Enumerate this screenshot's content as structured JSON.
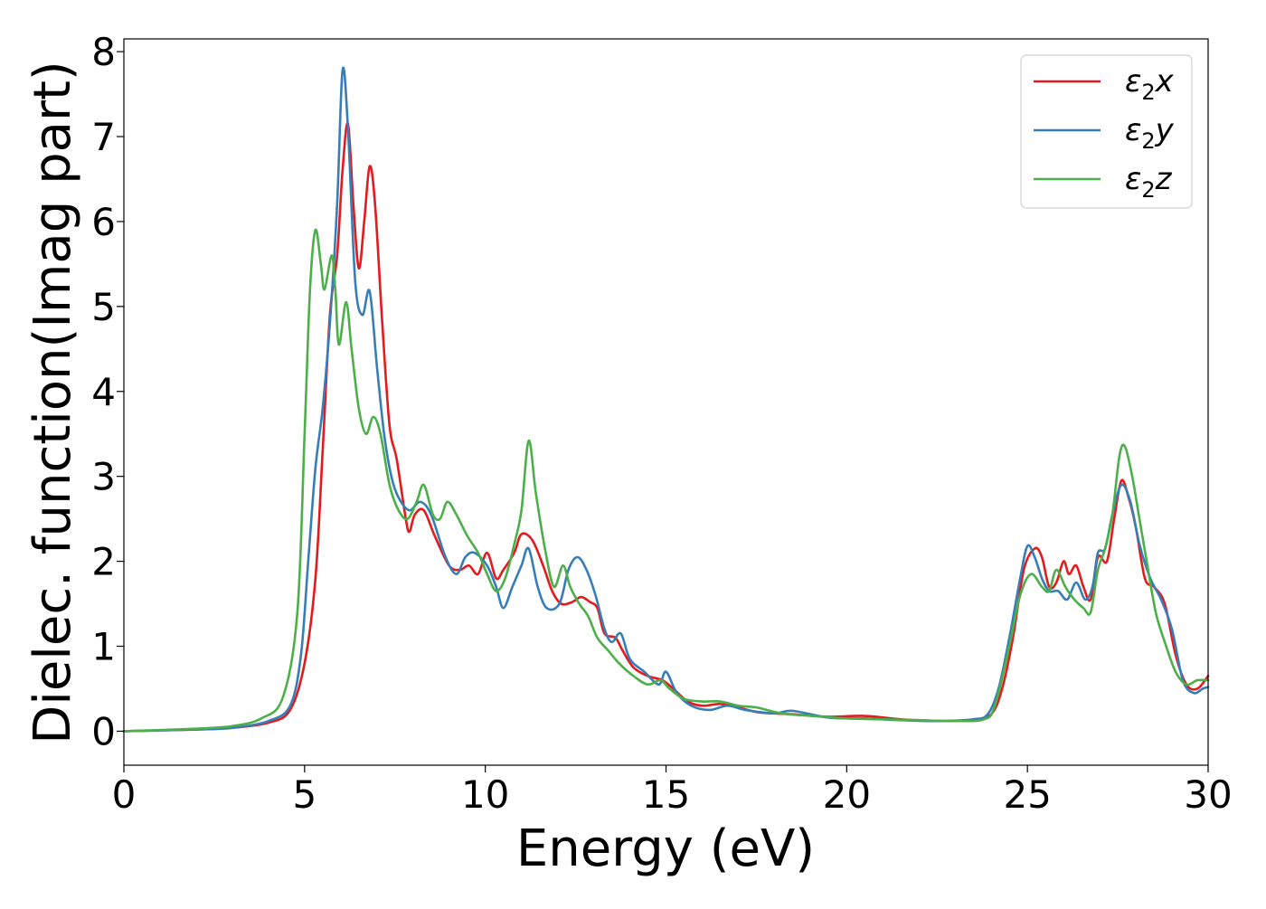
{
  "chart_data": {
    "type": "line",
    "title": "",
    "xlabel": "Energy (eV)",
    "ylabel": "Dielec. function(Imag part)",
    "xlim": [
      0,
      30
    ],
    "ylim": [
      -0.4,
      8.15
    ],
    "xticks": [
      0,
      5,
      10,
      15,
      20,
      25,
      30
    ],
    "yticks": [
      0,
      1,
      2,
      3,
      4,
      5,
      6,
      7,
      8
    ],
    "xtick_labels": [
      "0",
      "5",
      "10",
      "15",
      "20",
      "25",
      "30"
    ],
    "ytick_labels": [
      "0",
      "1",
      "2",
      "3",
      "4",
      "5",
      "6",
      "7",
      "8"
    ],
    "grid": false,
    "legend_position": "top-right",
    "series": [
      {
        "name": "ε₂x",
        "legend_base": "ε",
        "legend_sub": "2",
        "legend_var": "x",
        "color": "#e41a1c",
        "points": [
          [
            0,
            0
          ],
          [
            2,
            0.02
          ],
          [
            3,
            0.04
          ],
          [
            4,
            0.1
          ],
          [
            4.6,
            0.25
          ],
          [
            5,
            0.8
          ],
          [
            5.3,
            1.8
          ],
          [
            5.5,
            3.3
          ],
          [
            5.7,
            4.9
          ],
          [
            5.9,
            5.6
          ],
          [
            6.05,
            6.6
          ],
          [
            6.2,
            7.15
          ],
          [
            6.35,
            6.2
          ],
          [
            6.5,
            5.45
          ],
          [
            6.65,
            6
          ],
          [
            6.8,
            6.65
          ],
          [
            6.95,
            6.2
          ],
          [
            7.15,
            4.8
          ],
          [
            7.35,
            3.6
          ],
          [
            7.55,
            3.2
          ],
          [
            7.8,
            2.5
          ],
          [
            7.9,
            2.35
          ],
          [
            8.05,
            2.55
          ],
          [
            8.3,
            2.6
          ],
          [
            8.6,
            2.3
          ],
          [
            9,
            1.95
          ],
          [
            9.3,
            1.9
          ],
          [
            9.55,
            1.95
          ],
          [
            9.8,
            1.85
          ],
          [
            10.05,
            2.1
          ],
          [
            10.3,
            1.8
          ],
          [
            10.5,
            1.9
          ],
          [
            10.8,
            2.1
          ],
          [
            11,
            2.32
          ],
          [
            11.3,
            2.25
          ],
          [
            11.6,
            1.95
          ],
          [
            11.85,
            1.65
          ],
          [
            12.1,
            1.5
          ],
          [
            12.4,
            1.52
          ],
          [
            12.65,
            1.58
          ],
          [
            12.9,
            1.52
          ],
          [
            13.1,
            1.45
          ],
          [
            13.3,
            1.15
          ],
          [
            13.6,
            1.1
          ],
          [
            13.8,
            0.95
          ],
          [
            14.1,
            0.75
          ],
          [
            14.5,
            0.65
          ],
          [
            14.9,
            0.6
          ],
          [
            15.2,
            0.5
          ],
          [
            15.6,
            0.35
          ],
          [
            16,
            0.3
          ],
          [
            16.5,
            0.32
          ],
          [
            17,
            0.28
          ],
          [
            17.6,
            0.22
          ],
          [
            18.5,
            0.2
          ],
          [
            19.5,
            0.17
          ],
          [
            20.5,
            0.18
          ],
          [
            21.5,
            0.14
          ],
          [
            22.5,
            0.12
          ],
          [
            23.5,
            0.13
          ],
          [
            24,
            0.2
          ],
          [
            24.3,
            0.5
          ],
          [
            24.6,
            1.1
          ],
          [
            24.9,
            1.9
          ],
          [
            25.2,
            2.15
          ],
          [
            25.4,
            2.05
          ],
          [
            25.6,
            1.7
          ],
          [
            25.8,
            1.75
          ],
          [
            26,
            2
          ],
          [
            26.15,
            1.85
          ],
          [
            26.35,
            1.95
          ],
          [
            26.55,
            1.7
          ],
          [
            26.75,
            1.55
          ],
          [
            26.95,
            2.05
          ],
          [
            27.2,
            2
          ],
          [
            27.4,
            2.5
          ],
          [
            27.6,
            2.95
          ],
          [
            27.8,
            2.75
          ],
          [
            28,
            2.4
          ],
          [
            28.25,
            1.8
          ],
          [
            28.5,
            1.7
          ],
          [
            28.8,
            1.5
          ],
          [
            29.1,
            0.9
          ],
          [
            29.4,
            0.55
          ],
          [
            29.7,
            0.5
          ],
          [
            30,
            0.65
          ]
        ]
      },
      {
        "name": "ε₂y",
        "legend_base": "ε",
        "legend_sub": "2",
        "legend_var": "y",
        "color": "#377eb8",
        "points": [
          [
            0,
            0
          ],
          [
            2,
            0.02
          ],
          [
            3,
            0.04
          ],
          [
            4,
            0.12
          ],
          [
            4.6,
            0.3
          ],
          [
            4.9,
            0.9
          ],
          [
            5.1,
            2
          ],
          [
            5.3,
            3.1
          ],
          [
            5.5,
            3.8
          ],
          [
            5.7,
            4.8
          ],
          [
            5.9,
            6.2
          ],
          [
            6.05,
            7.78
          ],
          [
            6.2,
            7.1
          ],
          [
            6.4,
            5.3
          ],
          [
            6.6,
            4.9
          ],
          [
            6.8,
            5.18
          ],
          [
            7,
            4.3
          ],
          [
            7.2,
            3.5
          ],
          [
            7.4,
            3
          ],
          [
            7.6,
            2.75
          ],
          [
            7.9,
            2.6
          ],
          [
            8.2,
            2.7
          ],
          [
            8.5,
            2.55
          ],
          [
            8.9,
            2.05
          ],
          [
            9.2,
            1.85
          ],
          [
            9.45,
            2.05
          ],
          [
            9.7,
            2.1
          ],
          [
            10.05,
            1.95
          ],
          [
            10.3,
            1.7
          ],
          [
            10.5,
            1.45
          ],
          [
            10.75,
            1.7
          ],
          [
            11,
            1.95
          ],
          [
            11.2,
            2.15
          ],
          [
            11.45,
            1.7
          ],
          [
            11.7,
            1.45
          ],
          [
            12.05,
            1.5
          ],
          [
            12.3,
            1.9
          ],
          [
            12.55,
            2.05
          ],
          [
            12.8,
            1.9
          ],
          [
            13.05,
            1.6
          ],
          [
            13.3,
            1.2
          ],
          [
            13.5,
            1.05
          ],
          [
            13.75,
            1.15
          ],
          [
            14,
            0.85
          ],
          [
            14.4,
            0.7
          ],
          [
            14.8,
            0.55
          ],
          [
            15,
            0.7
          ],
          [
            15.3,
            0.45
          ],
          [
            15.7,
            0.3
          ],
          [
            16.2,
            0.25
          ],
          [
            16.7,
            0.3
          ],
          [
            17.2,
            0.25
          ],
          [
            18,
            0.21
          ],
          [
            18.5,
            0.24
          ],
          [
            19.5,
            0.16
          ],
          [
            20.5,
            0.15
          ],
          [
            21.5,
            0.13
          ],
          [
            22.5,
            0.12
          ],
          [
            23.5,
            0.14
          ],
          [
            23.9,
            0.2
          ],
          [
            24.2,
            0.5
          ],
          [
            24.5,
            1.1
          ],
          [
            24.8,
            1.8
          ],
          [
            25,
            2.18
          ],
          [
            25.2,
            2.05
          ],
          [
            25.4,
            1.8
          ],
          [
            25.6,
            1.65
          ],
          [
            25.85,
            1.65
          ],
          [
            26.1,
            1.55
          ],
          [
            26.35,
            1.75
          ],
          [
            26.6,
            1.55
          ],
          [
            26.8,
            1.7
          ],
          [
            26.95,
            2.1
          ],
          [
            27.15,
            2.15
          ],
          [
            27.35,
            2.55
          ],
          [
            27.6,
            2.9
          ],
          [
            27.85,
            2.7
          ],
          [
            28.1,
            2.2
          ],
          [
            28.4,
            1.8
          ],
          [
            28.7,
            1.55
          ],
          [
            29,
            1.2
          ],
          [
            29.3,
            0.6
          ],
          [
            29.6,
            0.45
          ],
          [
            29.85,
            0.5
          ],
          [
            30,
            0.52
          ]
        ]
      },
      {
        "name": "ε₂z",
        "legend_base": "ε",
        "legend_sub": "2",
        "legend_var": "z",
        "color": "#4daf4a",
        "points": [
          [
            0,
            0
          ],
          [
            2,
            0.03
          ],
          [
            3,
            0.06
          ],
          [
            3.8,
            0.15
          ],
          [
            4.4,
            0.4
          ],
          [
            4.8,
            1.4
          ],
          [
            5,
            3.5
          ],
          [
            5.15,
            5.2
          ],
          [
            5.3,
            5.9
          ],
          [
            5.45,
            5.5
          ],
          [
            5.55,
            5.2
          ],
          [
            5.75,
            5.6
          ],
          [
            5.85,
            5.2
          ],
          [
            5.95,
            4.55
          ],
          [
            6.15,
            5.05
          ],
          [
            6.3,
            4.5
          ],
          [
            6.5,
            3.8
          ],
          [
            6.7,
            3.5
          ],
          [
            6.9,
            3.7
          ],
          [
            7.1,
            3.5
          ],
          [
            7.35,
            2.9
          ],
          [
            7.6,
            2.6
          ],
          [
            7.85,
            2.5
          ],
          [
            8.1,
            2.7
          ],
          [
            8.3,
            2.9
          ],
          [
            8.55,
            2.55
          ],
          [
            8.75,
            2.5
          ],
          [
            8.95,
            2.7
          ],
          [
            9.2,
            2.55
          ],
          [
            9.5,
            2.3
          ],
          [
            9.8,
            2.1
          ],
          [
            10.05,
            1.85
          ],
          [
            10.3,
            1.65
          ],
          [
            10.55,
            1.8
          ],
          [
            10.8,
            2.2
          ],
          [
            11,
            2.6
          ],
          [
            11.2,
            3.42
          ],
          [
            11.4,
            2.8
          ],
          [
            11.65,
            2.15
          ],
          [
            11.9,
            1.7
          ],
          [
            12.15,
            1.95
          ],
          [
            12.35,
            1.7
          ],
          [
            12.6,
            1.5
          ],
          [
            12.85,
            1.35
          ],
          [
            13.1,
            1.1
          ],
          [
            13.4,
            0.95
          ],
          [
            13.7,
            0.8
          ],
          [
            14.1,
            0.65
          ],
          [
            14.5,
            0.55
          ],
          [
            14.85,
            0.6
          ],
          [
            15.1,
            0.5
          ],
          [
            15.5,
            0.38
          ],
          [
            16,
            0.35
          ],
          [
            16.5,
            0.35
          ],
          [
            17,
            0.3
          ],
          [
            17.5,
            0.28
          ],
          [
            18.2,
            0.21
          ],
          [
            19,
            0.18
          ],
          [
            20,
            0.15
          ],
          [
            21,
            0.14
          ],
          [
            22,
            0.13
          ],
          [
            23,
            0.12
          ],
          [
            23.8,
            0.14
          ],
          [
            24.1,
            0.3
          ],
          [
            24.5,
            1
          ],
          [
            24.8,
            1.6
          ],
          [
            25.1,
            1.85
          ],
          [
            25.4,
            1.7
          ],
          [
            25.6,
            1.65
          ],
          [
            25.8,
            1.9
          ],
          [
            26.05,
            1.7
          ],
          [
            26.3,
            1.55
          ],
          [
            26.55,
            1.45
          ],
          [
            26.75,
            1.4
          ],
          [
            26.95,
            1.9
          ],
          [
            27.15,
            2.15
          ],
          [
            27.35,
            2.55
          ],
          [
            27.55,
            3.25
          ],
          [
            27.7,
            3.35
          ],
          [
            27.9,
            3
          ],
          [
            28.1,
            2.5
          ],
          [
            28.3,
            2
          ],
          [
            28.55,
            1.4
          ],
          [
            28.8,
            1.05
          ],
          [
            29.1,
            0.7
          ],
          [
            29.4,
            0.55
          ],
          [
            29.7,
            0.6
          ],
          [
            30,
            0.6
          ]
        ]
      }
    ]
  }
}
